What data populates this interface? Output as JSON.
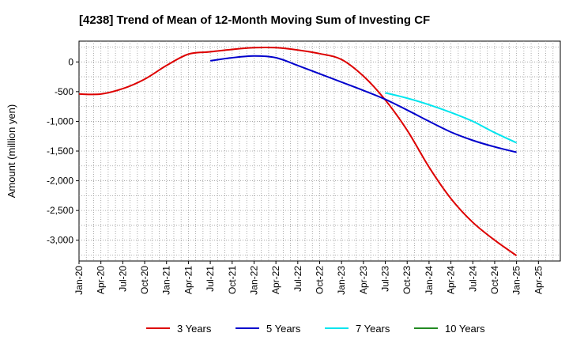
{
  "chart_data": {
    "type": "line",
    "title": "[4238]  Trend of Mean of 12-Month Moving Sum of Investing CF",
    "xlabel": "",
    "ylabel": "Amount (million yen)",
    "ylim": [
      -3350,
      350
    ],
    "grid": true,
    "legend_position": "bottom",
    "x_ticks": [
      "Jan-20",
      "Apr-20",
      "Jul-20",
      "Oct-20",
      "Jan-21",
      "Apr-21",
      "Jul-21",
      "Oct-21",
      "Jan-22",
      "Apr-22",
      "Jul-22",
      "Oct-22",
      "Jan-23",
      "Apr-23",
      "Jul-23",
      "Oct-23",
      "Jan-24",
      "Apr-24",
      "Jul-24",
      "Oct-24",
      "Jan-25",
      "Apr-25"
    ],
    "y_ticks": [
      {
        "value": 0,
        "label": "0"
      },
      {
        "value": -500,
        "label": "-500"
      },
      {
        "value": -1000,
        "label": "-1,000"
      },
      {
        "value": -1500,
        "label": "-1,500"
      },
      {
        "value": -2000,
        "label": "-2,000"
      },
      {
        "value": -2500,
        "label": "-2,500"
      },
      {
        "value": -3000,
        "label": "-3,000"
      }
    ],
    "series": [
      {
        "name": "3 Years",
        "color": "#dd0000",
        "points": [
          [
            "Jan-20",
            -540
          ],
          [
            "Apr-20",
            -540
          ],
          [
            "Jul-20",
            -450
          ],
          [
            "Oct-20",
            -290
          ],
          [
            "Jan-21",
            -60
          ],
          [
            "Apr-21",
            130
          ],
          [
            "Jul-21",
            170
          ],
          [
            "Oct-21",
            210
          ],
          [
            "Jan-22",
            240
          ],
          [
            "Apr-22",
            240
          ],
          [
            "Jul-22",
            200
          ],
          [
            "Oct-22",
            140
          ],
          [
            "Jan-23",
            40
          ],
          [
            "Apr-23",
            -240
          ],
          [
            "Jul-23",
            -640
          ],
          [
            "Oct-23",
            -1150
          ],
          [
            "Jan-24",
            -1770
          ],
          [
            "Apr-24",
            -2300
          ],
          [
            "Jul-24",
            -2700
          ],
          [
            "Oct-24",
            -3000
          ],
          [
            "Jan-25",
            -3260
          ]
        ]
      },
      {
        "name": "5 Years",
        "color": "#0000cc",
        "points": [
          [
            "Jul-21",
            20
          ],
          [
            "Oct-21",
            70
          ],
          [
            "Jan-22",
            100
          ],
          [
            "Apr-22",
            70
          ],
          [
            "Jul-22",
            -60
          ],
          [
            "Oct-22",
            -200
          ],
          [
            "Jan-23",
            -340
          ],
          [
            "Apr-23",
            -480
          ],
          [
            "Jul-23",
            -630
          ],
          [
            "Oct-23",
            -810
          ],
          [
            "Jan-24",
            -1000
          ],
          [
            "Apr-24",
            -1180
          ],
          [
            "Jul-24",
            -1320
          ],
          [
            "Oct-24",
            -1430
          ],
          [
            "Jan-25",
            -1520
          ]
        ]
      },
      {
        "name": "7 Years",
        "color": "#00e5ee",
        "points": [
          [
            "Jul-23",
            -520
          ],
          [
            "Oct-23",
            -610
          ],
          [
            "Jan-24",
            -720
          ],
          [
            "Apr-24",
            -850
          ],
          [
            "Jul-24",
            -1000
          ],
          [
            "Oct-24",
            -1190
          ],
          [
            "Jan-25",
            -1360
          ]
        ]
      },
      {
        "name": "10 Years",
        "color": "#228b22",
        "points": []
      }
    ]
  }
}
